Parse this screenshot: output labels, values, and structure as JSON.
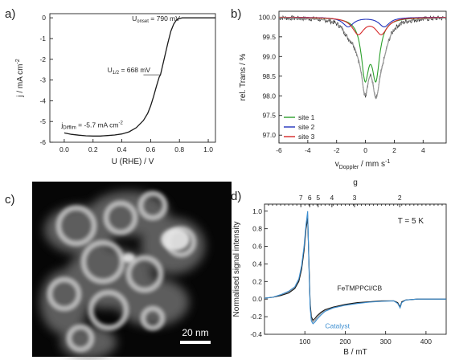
{
  "panels": {
    "a": {
      "label": "a)",
      "chart_data": {
        "type": "line",
        "xlabel": "U (RHE) / V",
        "ylabel": "j / mA cm",
        "ylabel_sup": "-2",
        "xlim": [
          -0.1,
          1.05
        ],
        "ylim": [
          -6.0,
          0.2
        ],
        "xticks": [
          "0.0",
          "0.2",
          "0.4",
          "0.6",
          "0.8",
          "1.0"
        ],
        "xtick_values": [
          0.0,
          0.2,
          0.4,
          0.6,
          0.8,
          1.0
        ],
        "yticks": [
          "0",
          "-1",
          "-2",
          "-3",
          "-4",
          "-5",
          "-6"
        ],
        "ytick_values": [
          0,
          -1,
          -2,
          -3,
          -4,
          -5,
          -6
        ],
        "series": [
          {
            "color": "#1a1a1a",
            "x": [
              0.0,
              0.05,
              0.1,
              0.15,
              0.2,
              0.25,
              0.3,
              0.35,
              0.4,
              0.45,
              0.5,
              0.55,
              0.58,
              0.6,
              0.62,
              0.64,
              0.66,
              0.668,
              0.68,
              0.7,
              0.72,
              0.74,
              0.76,
              0.78,
              0.79,
              0.82,
              0.85,
              0.9,
              0.95,
              1.0,
              1.05
            ],
            "y": [
              -5.55,
              -5.62,
              -5.66,
              -5.69,
              -5.7,
              -5.7,
              -5.68,
              -5.65,
              -5.6,
              -5.5,
              -5.3,
              -4.95,
              -4.6,
              -4.25,
              -3.8,
              -3.3,
              -2.85,
              -2.75,
              -2.4,
              -1.8,
              -1.2,
              -0.65,
              -0.3,
              -0.1,
              -0.05,
              0.0,
              0.0,
              0.0,
              0.0,
              0.0,
              0.0
            ]
          }
        ],
        "annotations": {
          "onset_main": "U",
          "onset_sub": "onset",
          "onset_val": " = 790 mV",
          "half_main": "U",
          "half_sub": "1/2",
          "half_val": " = 668 mV",
          "difflim_main": "j",
          "difflim_sub": "Difflim",
          "difflim_val": " = -5.7 mA cm",
          "difflim_sup": "-2"
        }
      }
    },
    "b": {
      "label": "b)",
      "chart_data": {
        "type": "line",
        "xlabel_main": "v",
        "xlabel_sub": "Doppler",
        "xlabel_rest": " / mm s",
        "xlabel_sup": "-1",
        "ylabel": "rel. Trans / %",
        "xlim": [
          -6,
          5.6
        ],
        "ylim": [
          96.8,
          100.15
        ],
        "xticks": [
          "-6",
          "-4",
          "-2",
          "0",
          "2",
          "4"
        ],
        "xtick_values": [
          -6,
          -4,
          -2,
          0,
          2,
          4
        ],
        "yticks": [
          "100.0",
          "99.5",
          "99.0",
          "98.5",
          "98.0",
          "97.5",
          "97.0"
        ],
        "ytick_values": [
          100.0,
          99.5,
          99.0,
          98.5,
          98.0,
          97.5,
          97.0
        ],
        "series": [
          {
            "name": "site 1",
            "color": "#2ca02c",
            "kind": "doublet",
            "center": 0.35,
            "split": 0.75,
            "depth": 2.85,
            "width": 0.32
          },
          {
            "name": "site 2",
            "color": "#2233bb",
            "kind": "doublet",
            "center": 0.05,
            "split": 2.5,
            "depth": 0.48,
            "width": 0.45
          },
          {
            "name": "site 3",
            "color": "#d62728",
            "kind": "doublet",
            "center": 0.3,
            "split": 1.6,
            "depth": 0.82,
            "width": 0.5
          },
          {
            "name": "",
            "color": "#1a1a1a",
            "kind": "data"
          },
          {
            "name": "",
            "color": "#999999",
            "kind": "fit"
          }
        ]
      }
    },
    "c": {
      "label": "c)",
      "scalebar": "20 nm"
    },
    "d": {
      "label": "d)",
      "chart_data": {
        "type": "line",
        "xlabel": "B / mT",
        "ylabel": "Normalised signal intensity",
        "top_label": "g",
        "top_ticks": [
          "7",
          "6",
          "5",
          "4",
          "3",
          "2"
        ],
        "top_tick_B": [
          90,
          112,
          133,
          167,
          223,
          335
        ],
        "xlim": [
          0,
          450
        ],
        "ylim": [
          -0.4,
          1.08
        ],
        "xticks": [
          "100",
          "200",
          "300",
          "400"
        ],
        "xtick_values": [
          100,
          200,
          300,
          400
        ],
        "yticks": [
          "1.0",
          "0.8",
          "0.6",
          "0.4",
          "0.2",
          "0.0",
          "-0.2",
          "-0.4"
        ],
        "ytick_values": [
          1.0,
          0.8,
          0.6,
          0.4,
          0.2,
          0.0,
          -0.2,
          -0.4
        ],
        "annotation_temp": "T = 5 K",
        "series": [
          {
            "name": "FeTMPPCl/CB",
            "color": "#1a1a1a",
            "x": [
              0,
              20,
              40,
              60,
              75,
              85,
              92,
              98,
              103,
              107,
              110,
              113,
              116,
              120,
              125,
              130,
              140,
              150,
              170,
              200,
              230,
              260,
              290,
              320,
              330,
              336,
              340,
              350,
              380,
              420,
              450
            ],
            "y": [
              0.01,
              0.02,
              0.04,
              0.07,
              0.12,
              0.2,
              0.34,
              0.55,
              0.8,
              0.92,
              0.45,
              -0.05,
              -0.2,
              -0.24,
              -0.22,
              -0.19,
              -0.15,
              -0.12,
              -0.09,
              -0.06,
              -0.04,
              -0.03,
              -0.02,
              -0.02,
              -0.04,
              -0.09,
              -0.03,
              -0.01,
              0.0,
              0.0,
              0.0
            ]
          },
          {
            "name": "Catalyst",
            "color": "#3d8fd1",
            "x": [
              0,
              20,
              40,
              60,
              75,
              85,
              92,
              98,
              103,
              107,
              110,
              113,
              116,
              120,
              125,
              130,
              140,
              150,
              170,
              200,
              230,
              260,
              290,
              320,
              330,
              336,
              340,
              350,
              380,
              420,
              450
            ],
            "y": [
              0.01,
              0.02,
              0.05,
              0.09,
              0.14,
              0.23,
              0.38,
              0.6,
              0.85,
              1.0,
              0.4,
              -0.1,
              -0.25,
              -0.28,
              -0.26,
              -0.23,
              -0.18,
              -0.14,
              -0.1,
              -0.07,
              -0.05,
              -0.035,
              -0.025,
              -0.02,
              -0.05,
              -0.1,
              -0.04,
              -0.01,
              0.0,
              0.0,
              0.0
            ]
          },
          {
            "name": "",
            "color": "#999999",
            "x": [
              0,
              20,
              40,
              60,
              75,
              85,
              92,
              98,
              103,
              107,
              110,
              113,
              116,
              120,
              125,
              130,
              140,
              150,
              170,
              200,
              230,
              260,
              290,
              320,
              330,
              336,
              340,
              350,
              380,
              420,
              450
            ],
            "y": [
              0.01,
              0.02,
              0.045,
              0.08,
              0.13,
              0.21,
              0.36,
              0.57,
              0.82,
              0.96,
              0.42,
              -0.07,
              -0.22,
              -0.26,
              -0.24,
              -0.21,
              -0.16,
              -0.13,
              -0.095,
              -0.065,
              -0.045,
              -0.032,
              -0.022,
              -0.02,
              -0.045,
              -0.095,
              -0.035,
              -0.01,
              0.0,
              0.0,
              0.0
            ]
          }
        ]
      }
    }
  }
}
